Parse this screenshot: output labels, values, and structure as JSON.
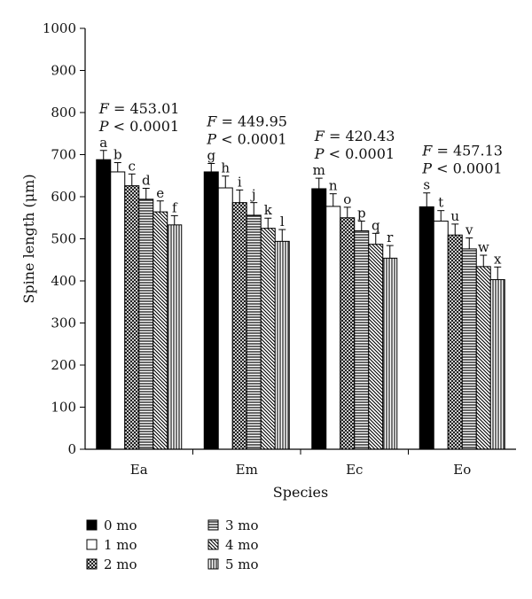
{
  "chart_data": {
    "type": "bar",
    "xlabel": "Species",
    "ylabel": "Spine length (μm)",
    "ylim": [
      0,
      1000
    ],
    "yticks": [
      0,
      100,
      200,
      300,
      400,
      500,
      600,
      700,
      800,
      900,
      1000
    ],
    "categories": [
      "Ea",
      "Em",
      "Ec",
      "Eo"
    ],
    "series": [
      {
        "name": "0 mo",
        "values": [
          688,
          659,
          619,
          576
        ],
        "errors": [
          22,
          20,
          25,
          33
        ],
        "letters": [
          "a",
          "g",
          "m",
          "s"
        ],
        "pattern": "solid-black"
      },
      {
        "name": "1 mo",
        "values": [
          659,
          621,
          577,
          542
        ],
        "errors": [
          22,
          28,
          30,
          25
        ],
        "letters": [
          "b",
          "h",
          "n",
          "t"
        ],
        "pattern": "white"
      },
      {
        "name": "2 mo",
        "values": [
          626,
          586,
          550,
          509
        ],
        "errors": [
          28,
          30,
          25,
          26
        ],
        "letters": [
          "c",
          "i",
          "o",
          "u"
        ],
        "pattern": "diagonal-crosshatch"
      },
      {
        "name": "3 mo",
        "values": [
          594,
          556,
          519,
          476
        ],
        "errors": [
          26,
          30,
          23,
          26
        ],
        "letters": [
          "d",
          "j",
          "p",
          "v"
        ],
        "pattern": "horizontal-lines"
      },
      {
        "name": "4 mo",
        "values": [
          564,
          525,
          487,
          434
        ],
        "errors": [
          26,
          24,
          26,
          27
        ],
        "letters": [
          "e",
          "k",
          "q",
          "w"
        ],
        "pattern": "diagonal-lines"
      },
      {
        "name": "5 mo",
        "values": [
          533,
          494,
          454,
          403
        ],
        "errors": [
          22,
          28,
          30,
          30
        ],
        "letters": [
          "f",
          "l",
          "r",
          "x"
        ],
        "pattern": "vertical-lines"
      }
    ],
    "annotations": [
      {
        "category": "Ea",
        "F": "= 453.01",
        "P": "< 0.0001"
      },
      {
        "category": "Em",
        "F": "= 449.95",
        "P": "< 0.0001"
      },
      {
        "category": "Ec",
        "F": "= 420.43",
        "P": "< 0.0001"
      },
      {
        "category": "Eo",
        "F": "= 457.13",
        "P": "< 0.0001"
      }
    ],
    "legend_order": [
      "0 mo",
      "3 mo",
      "1 mo",
      "4 mo",
      "2 mo",
      "5 mo"
    ],
    "legend_position": "bottom-left",
    "grid": false
  }
}
